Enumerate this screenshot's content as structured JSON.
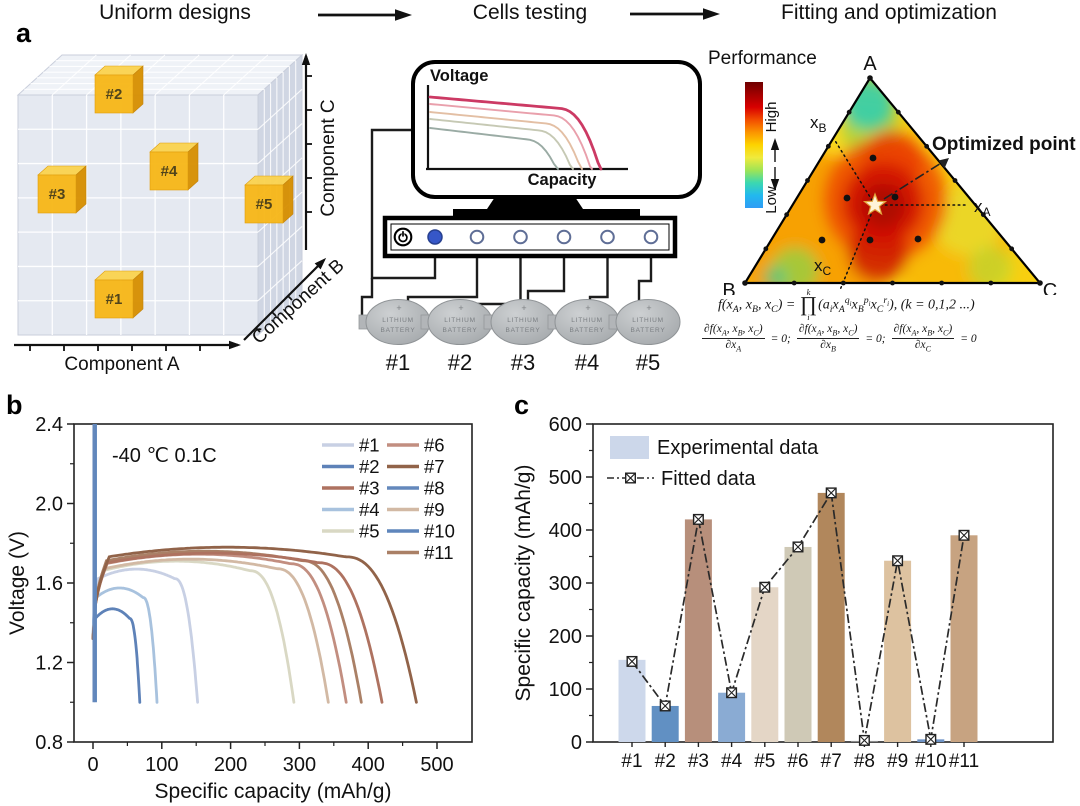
{
  "figure": {
    "panel_a_label": "a",
    "panel_b_label": "b",
    "panel_c_label": "c",
    "workflow": {
      "step1": "Uniform designs",
      "step2": "Cells testing",
      "step3": "Fitting and optimization"
    }
  },
  "design_cube": {
    "axis_a": "Component A",
    "axis_b": "Component B",
    "axis_c": "Component C",
    "grid_n": 7,
    "cube_color": "#f7b717",
    "samples": [
      {
        "label": "#1",
        "x": 95,
        "y": 240
      },
      {
        "label": "#2",
        "x": 95,
        "y": 35
      },
      {
        "label": "#3",
        "x": 38,
        "y": 135
      },
      {
        "label": "#4",
        "x": 150,
        "y": 112
      },
      {
        "label": "#5",
        "x": 245,
        "y": 145
      }
    ]
  },
  "cells_testing": {
    "screen_ylabel": "Voltage",
    "screen_xlabel": "Capacity",
    "screen_curves": [
      {
        "color": "#9aaba4",
        "start_y": 83,
        "end_x": 208
      },
      {
        "color": "#c6c9b4",
        "start_y": 74,
        "end_x": 223
      },
      {
        "color": "#e3bfa4",
        "start_y": 67,
        "end_x": 232
      },
      {
        "color": "#e9a0ac",
        "start_y": 59,
        "end_x": 242
      },
      {
        "color": "#cc3a64",
        "start_y": 52,
        "end_x": 251
      }
    ],
    "battery_plus": "+",
    "battery_line1": "LITHIUM",
    "battery_line2": "BATTERY",
    "batteries": [
      "#1",
      "#2",
      "#3",
      "#4",
      "#5"
    ]
  },
  "ternary": {
    "colorbar_title": "Performance",
    "colorbar_high": "High",
    "colorbar_low": "Low",
    "colorbar_stops": [
      "#6e0000",
      "#a40000",
      "#d80000",
      "#f24d00",
      "#fb9500",
      "#fdd300",
      "#f0ea3c",
      "#9fe455",
      "#3bd8b0",
      "#22b8ee",
      "#2f9cf5"
    ],
    "vertex_a": "A",
    "vertex_b": "B",
    "vertex_c": "C",
    "axis_labels": [
      {
        "main": "x",
        "sub": "B"
      },
      {
        "main": "x",
        "sub": "A"
      },
      {
        "main": "x",
        "sub": "C"
      }
    ],
    "optimized_point_label": "Optimized point",
    "formula_line1_html": "f(x<sub>A</sub>, x<sub>B</sub>, x<sub>C</sub>) = <span class='bigop'><span class='lim-top'>k</span><span class='op'>&#8719;</span><span class='lim-bot'>i</span></span>(a<sub>i</sub>x<sub>A</sub><sup>q<sub>i</sub></sup>x<sub>B</sub><sup>p<sub>i</sub></sup>x<sub>C</sub><sup>r<sub>i</sub></sup>), (k = 0,1,2 ...)",
    "formula_line2_html": "<span class='frac'><span class='num'>&#8706;f(x<sub>A</sub>, x<sub>B</sub>, x<sub>C</sub>)</span><span class='den'>&#8706;x<sub>A</sub></span></span><span> = 0;</span> <span class='frac'><span class='num'>&#8706;f(x<sub>A</sub>, x<sub>B</sub>, x<sub>C</sub>)</span><span class='den'>&#8706;x<sub>B</sub></span></span><span> = 0;</span> <span class='frac'><span class='num'>&#8706;f(x<sub>A</sub>, x<sub>B</sub>, x<sub>C</sub>)</span><span class='den'>&#8706;x<sub>C</sub></span></span><span> = 0</span>"
  },
  "chart_data": [
    {
      "panel": "b",
      "type": "line",
      "annotation": "-40 ℃ 0.1C",
      "xlabel": "Specific capacity (mAh/g)",
      "ylabel": "Voltage (V)",
      "xlim": [
        -28,
        550
      ],
      "ylim": [
        0.8,
        2.4
      ],
      "xticks": [
        0,
        100,
        200,
        300,
        400,
        500
      ],
      "yticks": [
        0.8,
        1.2,
        1.6,
        2.0,
        2.4
      ],
      "series": [
        {
          "name": "#1",
          "color": "#c8d0e4",
          "capacity_mAh_g": 152,
          "plateau_v": 1.67
        },
        {
          "name": "#2",
          "color": "#5e82b8",
          "capacity_mAh_g": 68,
          "plateau_v": 1.47
        },
        {
          "name": "#3",
          "color": "#ae7260",
          "capacity_mAh_g": 420,
          "plateau_v": 1.75
        },
        {
          "name": "#4",
          "color": "#a8c2de",
          "capacity_mAh_g": 93,
          "plateau_v": 1.575
        },
        {
          "name": "#5",
          "color": "#d9d8c4",
          "capacity_mAh_g": 292,
          "plateau_v": 1.71
        },
        {
          "name": "#6",
          "color": "#c28e80",
          "capacity_mAh_g": 368,
          "plateau_v": 1.745
        },
        {
          "name": "#7",
          "color": "#916349",
          "capacity_mAh_g": 470,
          "plateau_v": 1.78
        },
        {
          "name": "#8",
          "color": "#6488bc",
          "capacity_mAh_g": 1,
          "plateau_v": 2.4,
          "vertical_drop": true
        },
        {
          "name": "#9",
          "color": "#d2b9a4",
          "capacity_mAh_g": 342,
          "plateau_v": 1.72
        },
        {
          "name": "#10",
          "color": "#5f86bc",
          "capacity_mAh_g": 4,
          "plateau_v": 2.4,
          "vertical_drop": true
        },
        {
          "name": "#11",
          "color": "#aa8066",
          "capacity_mAh_g": 390,
          "plateau_v": 1.76
        }
      ]
    },
    {
      "panel": "c",
      "type": "bar+line",
      "categories": [
        "#1",
        "#2",
        "#3",
        "#4",
        "#5",
        "#6",
        "#7",
        "#8",
        "#9",
        "#10",
        "#11"
      ],
      "bars": {
        "name": "Experimental data",
        "legend_color": "#ccd7ea",
        "values": [
          155,
          68,
          420,
          93,
          292,
          368,
          470,
          2,
          342,
          5,
          390
        ],
        "colors": [
          "#cdd8eb",
          "#6190c3",
          "#b78f7b",
          "#8aabd3",
          "#e4d6c6",
          "#cfc9b6",
          "#b1875c",
          "#8c8c8c",
          "#ddc2a0",
          "#6e93c5",
          "#c7a381"
        ]
      },
      "fitted": {
        "name": "Fitted data",
        "values": [
          152,
          68,
          420,
          93,
          292,
          368,
          470,
          3,
          342,
          5,
          390
        ]
      },
      "ylabel": "Specific capacity (mAh/g)",
      "ylim": [
        0,
        600
      ],
      "yticks": [
        0,
        100,
        200,
        300,
        400,
        500,
        600
      ]
    }
  ]
}
